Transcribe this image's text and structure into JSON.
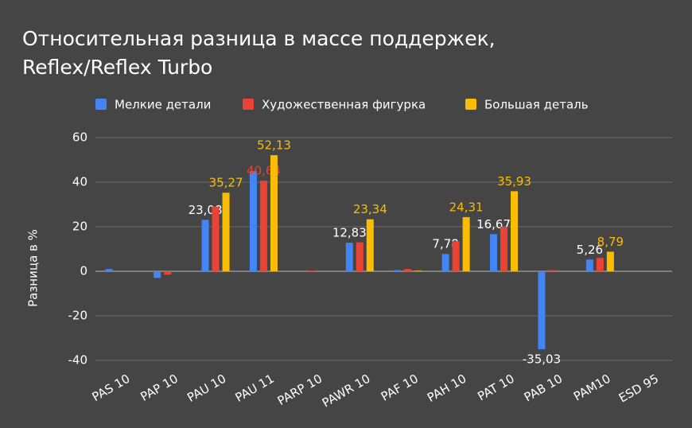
{
  "chart_data": {
    "type": "bar",
    "title": [
      "Относительная разница в массе поддержек,",
      "Reflex/Reflex Turbo"
    ],
    "y_label": "Разница в %",
    "categories": [
      "PAS 10",
      "PAP 10",
      "PAU 10",
      "PAU 11",
      "PARP 10",
      "PAWR 10",
      "PAF 10",
      "PAH 10",
      "PAT 10",
      "PAB 10",
      "PAM10",
      "ESD 95"
    ],
    "series": [
      {
        "name": "Мелкие детали",
        "color": "#4285f4",
        "label_color": "#ffffff",
        "values": [
          1,
          -3,
          23.08,
          45,
          0,
          12.83,
          0.5,
          7.78,
          16.67,
          -35.03,
          5.26,
          0
        ],
        "value_labels": [
          null,
          null,
          "23,08",
          null,
          null,
          "12,83",
          null,
          "7,78",
          "16,67",
          "-35,03",
          "5,26",
          null
        ]
      },
      {
        "name": "Художественная фигурка",
        "color": "#ea4335",
        "label_color": "#ea4335",
        "values": [
          0,
          -1.5,
          29,
          40.64,
          0.3,
          13,
          1,
          13.5,
          20,
          0.5,
          6,
          0
        ],
        "value_labels": [
          null,
          null,
          null,
          "40,64",
          null,
          null,
          null,
          null,
          null,
          null,
          null,
          null
        ]
      },
      {
        "name": "Большая деталь",
        "color": "#fbbc04",
        "label_color": "#fbbc04",
        "values": [
          0,
          0,
          35.27,
          52.13,
          0,
          23.34,
          0.3,
          24.31,
          35.93,
          0,
          8.79,
          0
        ],
        "value_labels": [
          null,
          null,
          "35,27",
          "52,13",
          null,
          "23,34",
          null,
          "24,31",
          "35,93",
          null,
          "8,79",
          null
        ]
      }
    ],
    "ylim": [
      -40,
      60
    ],
    "yticks": [
      60,
      40,
      20,
      0,
      -20,
      -40
    ],
    "grid": true
  }
}
